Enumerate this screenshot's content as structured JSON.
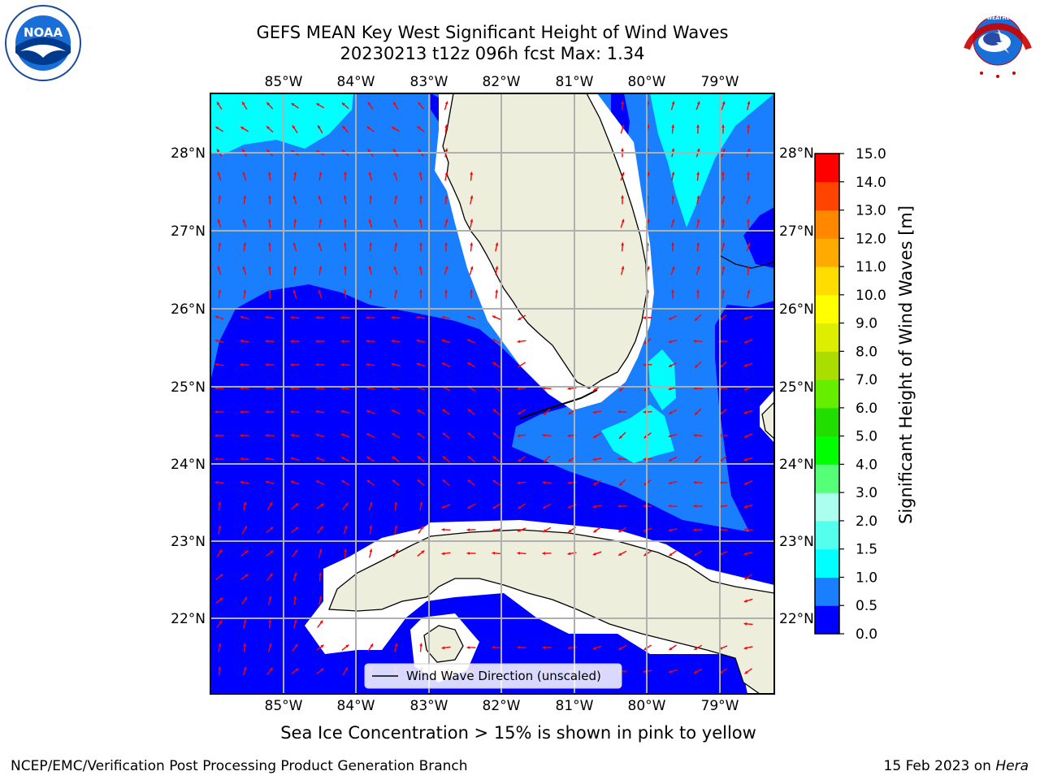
{
  "title": {
    "line1": "GEFS MEAN Key West Significant Height of Wind Waves",
    "line2": "20230213 t12z 096h fcst   Max: 1.34"
  },
  "axes": {
    "lon_labels": [
      "85°W",
      "84°W",
      "83°W",
      "82°W",
      "81°W",
      "80°W",
      "79°W"
    ],
    "lat_labels": [
      "28°N",
      "27°N",
      "26°N",
      "25°N",
      "24°N",
      "23°N",
      "22°N"
    ]
  },
  "legend": {
    "label": "Wind Wave Direction (unscaled)"
  },
  "colorbar": {
    "label": "Significant Height of Wind Waves [m]",
    "ticks": [
      "0.0",
      "0.5",
      "1.0",
      "1.5",
      "2.0",
      "3.0",
      "4.0",
      "5.0",
      "6.0",
      "7.0",
      "8.0",
      "9.0",
      "10.0",
      "11.0",
      "12.0",
      "13.0",
      "14.0",
      "15.0"
    ],
    "colors": [
      "#0000ff",
      "#1a7fff",
      "#00ffff",
      "#55ffee",
      "#aaffee",
      "#55ff77",
      "#00ff00",
      "#22dd00",
      "#66ee00",
      "#aadd00",
      "#ddee00",
      "#ffff00",
      "#ffdd00",
      "#ffaa00",
      "#ff8800",
      "#ff4400",
      "#ff0000"
    ]
  },
  "subtitle": "Sea Ice Concentration > 15% is shown in pink to yellow",
  "footer": {
    "left": "NCEP/EMC/Verification Post Processing Product Generation Branch",
    "right_date": "15 Feb 2023 on ",
    "right_host": "Hera"
  },
  "logos": {
    "noaa_text": "NOAA",
    "nws_text": "NATIONAL WEATHER SERVICE"
  },
  "palette": {
    "land": "#eeeedd",
    "deep": "#0000ff",
    "mid": "#1a7fff",
    "cyan": "#00ffff",
    "arrow": "#ff0000"
  }
}
